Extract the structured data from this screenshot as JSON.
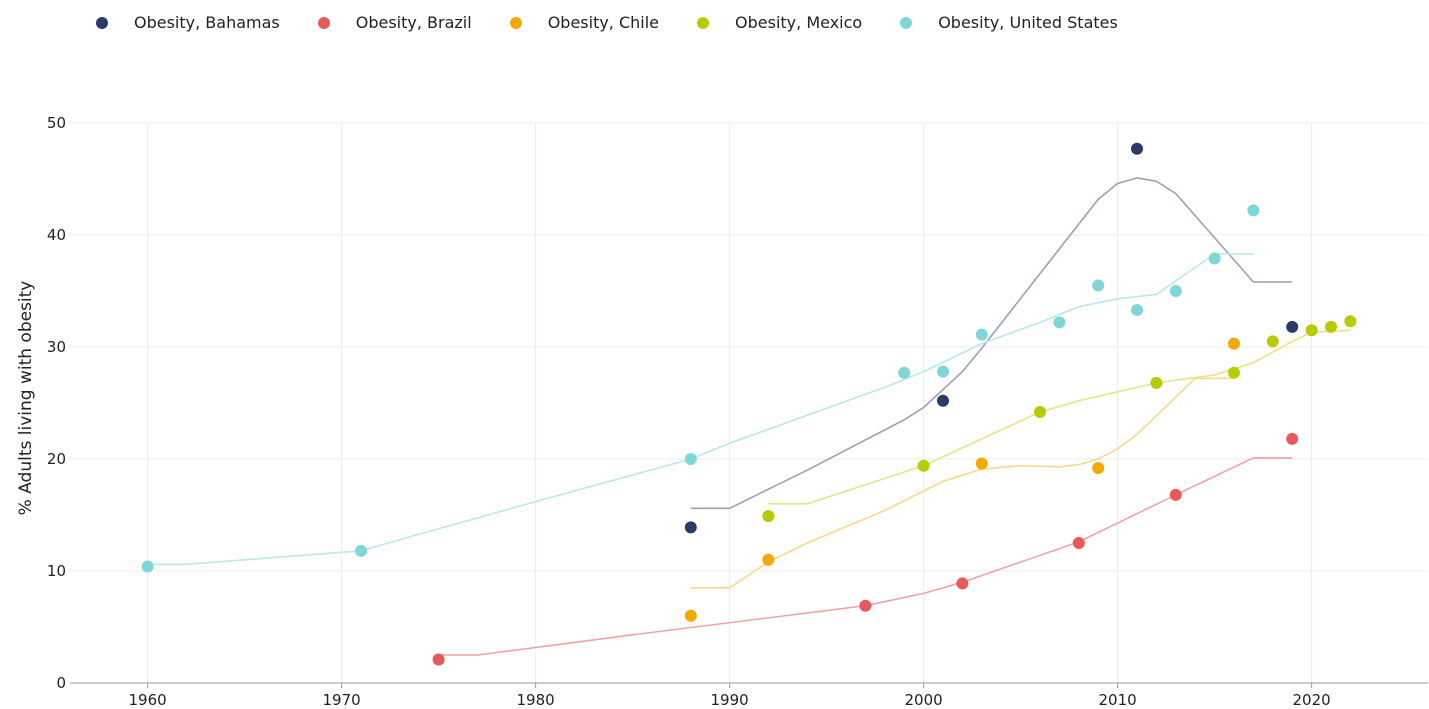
{
  "chart_data": {
    "type": "scatter",
    "xlabel": "",
    "ylabel": "% Adults living with obesity",
    "xlim": [
      1956,
      2026
    ],
    "ylim": [
      0,
      50
    ],
    "x_ticks": [
      "1960",
      "1970",
      "1980",
      "1990",
      "2000",
      "2010",
      "2020"
    ],
    "y_ticks": [
      "0",
      "10",
      "20",
      "30",
      "40",
      "50"
    ],
    "grid": true,
    "legend": "top-left",
    "series": [
      {
        "name": "Obesity, Bahamas",
        "color": "#2b3a67",
        "trend_color": "#9b9fb8",
        "points": [
          [
            1988,
            13.9
          ],
          [
            2001,
            25.2
          ],
          [
            2011,
            47.7
          ],
          [
            2019,
            31.8
          ]
        ],
        "trend": [
          [
            1988,
            15.6
          ],
          [
            1990,
            15.6
          ],
          [
            1994,
            19.0
          ],
          [
            1999,
            23.5
          ],
          [
            2000,
            24.6
          ],
          [
            2002,
            27.8
          ],
          [
            2003,
            29.9
          ],
          [
            2009,
            43.2
          ],
          [
            2010,
            44.6
          ],
          [
            2011,
            45.1
          ],
          [
            2012,
            44.8
          ],
          [
            2013,
            43.7
          ],
          [
            2017,
            35.8
          ],
          [
            2019,
            35.8
          ]
        ]
      },
      {
        "name": "Obesity, Brazil",
        "color": "#e8595b",
        "trend_color": "#f0a3a4",
        "points": [
          [
            1975,
            2.1
          ],
          [
            1997,
            6.9
          ],
          [
            2002,
            8.9
          ],
          [
            2008,
            12.5
          ],
          [
            2013,
            16.8
          ],
          [
            2019,
            21.8
          ]
        ],
        "trend": [
          [
            1975,
            2.5
          ],
          [
            1977,
            2.5
          ],
          [
            1985,
            4.3
          ],
          [
            1997,
            6.9
          ],
          [
            2000,
            8.0
          ],
          [
            2002,
            9.0
          ],
          [
            2004,
            10.2
          ],
          [
            2008,
            12.6
          ],
          [
            2013,
            16.8
          ],
          [
            2017,
            20.1
          ],
          [
            2019,
            20.1
          ]
        ]
      },
      {
        "name": "Obesity, Chile",
        "color": "#f2a900",
        "trend_color": "#f7d98a",
        "points": [
          [
            1988,
            6.0
          ],
          [
            1992,
            11.0
          ],
          [
            2003,
            19.6
          ],
          [
            2009,
            19.2
          ],
          [
            2016,
            30.3
          ]
        ],
        "trend": [
          [
            1988,
            8.5
          ],
          [
            1990,
            8.5
          ],
          [
            1992,
            10.8
          ],
          [
            1994,
            12.5
          ],
          [
            1998,
            15.4
          ],
          [
            2001,
            18.0
          ],
          [
            2003,
            19.1
          ],
          [
            2005,
            19.4
          ],
          [
            2007,
            19.3
          ],
          [
            2008,
            19.5
          ],
          [
            2009,
            20.0
          ],
          [
            2010,
            20.9
          ],
          [
            2011,
            22.2
          ],
          [
            2014,
            27.2
          ],
          [
            2016,
            27.2
          ]
        ]
      },
      {
        "name": "Obesity, Mexico",
        "color": "#b8ca00",
        "trend_color": "#e7e38a",
        "points": [
          [
            1992,
            14.9
          ],
          [
            2000,
            19.4
          ],
          [
            2006,
            24.2
          ],
          [
            2012,
            26.8
          ],
          [
            2016,
            27.7
          ],
          [
            2018,
            30.5
          ],
          [
            2020,
            31.5
          ],
          [
            2021,
            31.8
          ],
          [
            2022,
            32.3
          ]
        ],
        "trend": [
          [
            1992,
            16.0
          ],
          [
            1994,
            16.0
          ],
          [
            2000,
            19.4
          ],
          [
            2002,
            21.0
          ],
          [
            2006,
            24.2
          ],
          [
            2008,
            25.2
          ],
          [
            2012,
            26.8
          ],
          [
            2015,
            27.5
          ],
          [
            2017,
            28.6
          ],
          [
            2019,
            30.5
          ],
          [
            2020,
            31.3
          ],
          [
            2022,
            31.5
          ]
        ]
      },
      {
        "name": "Obesity, United States",
        "color": "#7fd6d8",
        "trend_color": "#b9e8ea",
        "points": [
          [
            1960,
            10.4
          ],
          [
            1971,
            11.8
          ],
          [
            1988,
            20.0
          ],
          [
            1999,
            27.7
          ],
          [
            2001,
            27.8
          ],
          [
            2003,
            31.1
          ],
          [
            2007,
            32.2
          ],
          [
            2009,
            35.5
          ],
          [
            2011,
            33.3
          ],
          [
            2013,
            35.0
          ],
          [
            2015,
            37.9
          ],
          [
            2017,
            42.2
          ]
        ],
        "trend": [
          [
            1960,
            10.6
          ],
          [
            1962,
            10.6
          ],
          [
            1971,
            11.8
          ],
          [
            1973,
            12.8
          ],
          [
            1980,
            16.2
          ],
          [
            1988,
            20.0
          ],
          [
            1990,
            21.4
          ],
          [
            1998,
            26.4
          ],
          [
            2000,
            27.8
          ],
          [
            2003,
            30.3
          ],
          [
            2006,
            32.2
          ],
          [
            2008,
            33.6
          ],
          [
            2010,
            34.3
          ],
          [
            2012,
            34.7
          ],
          [
            2015,
            38.3
          ],
          [
            2017,
            38.3
          ]
        ]
      }
    ]
  }
}
